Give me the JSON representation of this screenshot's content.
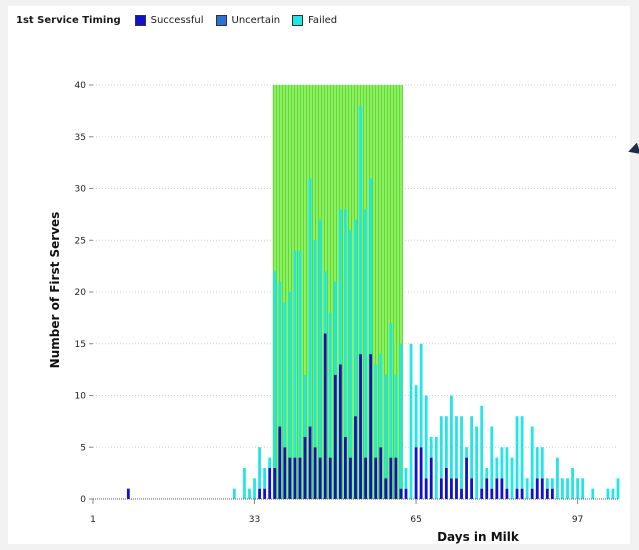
{
  "chart_data": {
    "type": "bar",
    "stacked": true,
    "title": "1st Service Timing",
    "xlabel": "Days in Milk",
    "ylabel": "Number of First Serves",
    "xlim": [
      1,
      105
    ],
    "ylim": [
      0,
      40
    ],
    "x_ticks": [
      1,
      33,
      65,
      97
    ],
    "y_ticks": [
      0,
      5,
      10,
      15,
      20,
      25,
      30,
      35,
      40
    ],
    "highlight_window": {
      "x_start": 37,
      "x_end": 62,
      "color": "#7ee84a"
    },
    "colors": {
      "Successful": "#1010d0",
      "Uncertain": "#2a72d8",
      "Failed": "#22e6e6"
    },
    "series_names": [
      "Successful",
      "Uncertain",
      "Failed"
    ],
    "days": [
      8,
      29,
      31,
      32,
      33,
      34,
      35,
      36,
      37,
      38,
      39,
      40,
      41,
      42,
      43,
      44,
      45,
      46,
      47,
      48,
      49,
      50,
      51,
      52,
      53,
      54,
      55,
      56,
      57,
      58,
      59,
      60,
      61,
      62,
      63,
      64,
      65,
      66,
      67,
      68,
      69,
      70,
      71,
      72,
      73,
      74,
      75,
      76,
      77,
      78,
      79,
      80,
      81,
      82,
      83,
      84,
      85,
      86,
      87,
      88,
      89,
      90,
      91,
      92,
      93,
      94,
      95,
      96,
      97,
      98,
      100,
      103,
      104,
      105
    ],
    "successful": [
      1,
      0,
      0,
      0,
      0,
      1,
      1,
      3,
      3,
      7,
      5,
      4,
      4,
      4,
      6,
      7,
      5,
      4,
      16,
      4,
      12,
      13,
      6,
      4,
      8,
      14,
      4,
      14,
      4,
      5,
      2,
      4,
      4,
      1,
      1,
      0,
      5,
      5,
      2,
      4,
      0,
      2,
      3,
      2,
      2,
      1,
      4,
      2,
      0,
      1,
      2,
      1,
      2,
      2,
      1,
      0,
      1,
      1,
      0,
      1,
      2,
      2,
      1,
      1,
      0,
      0,
      0,
      0,
      0,
      0,
      0,
      0,
      0,
      0
    ],
    "uncertain": [
      0,
      0,
      0,
      0,
      0,
      0,
      0,
      0,
      0,
      0,
      0,
      0,
      0,
      0,
      0,
      0,
      0,
      0,
      0,
      0,
      0,
      0,
      0,
      0,
      0,
      0,
      0,
      0,
      0,
      0,
      0,
      0,
      0,
      0,
      0,
      0,
      0,
      0,
      0,
      0,
      0,
      0,
      0,
      0,
      0,
      0,
      0,
      0,
      0,
      0,
      0,
      0,
      0,
      0,
      0,
      0,
      0,
      0,
      0,
      0,
      0,
      0,
      0,
      0,
      0,
      0,
      0,
      0,
      0,
      0,
      0,
      0,
      0,
      0
    ],
    "failed": [
      0,
      1,
      3,
      1,
      2,
      4,
      2,
      1,
      19,
      14,
      14,
      16,
      20,
      20,
      6,
      24,
      20,
      23,
      6,
      14,
      9,
      15,
      22,
      22,
      19,
      24,
      24,
      17,
      9,
      9,
      10,
      13,
      8,
      14,
      2,
      15,
      6,
      10,
      8,
      2,
      6,
      6,
      5,
      8,
      6,
      7,
      1,
      6,
      7,
      8,
      1,
      6,
      2,
      3,
      4,
      4,
      7,
      7,
      2,
      6,
      3,
      3,
      1,
      1,
      4,
      2,
      2,
      3,
      2,
      2,
      1,
      1,
      1,
      2
    ]
  }
}
